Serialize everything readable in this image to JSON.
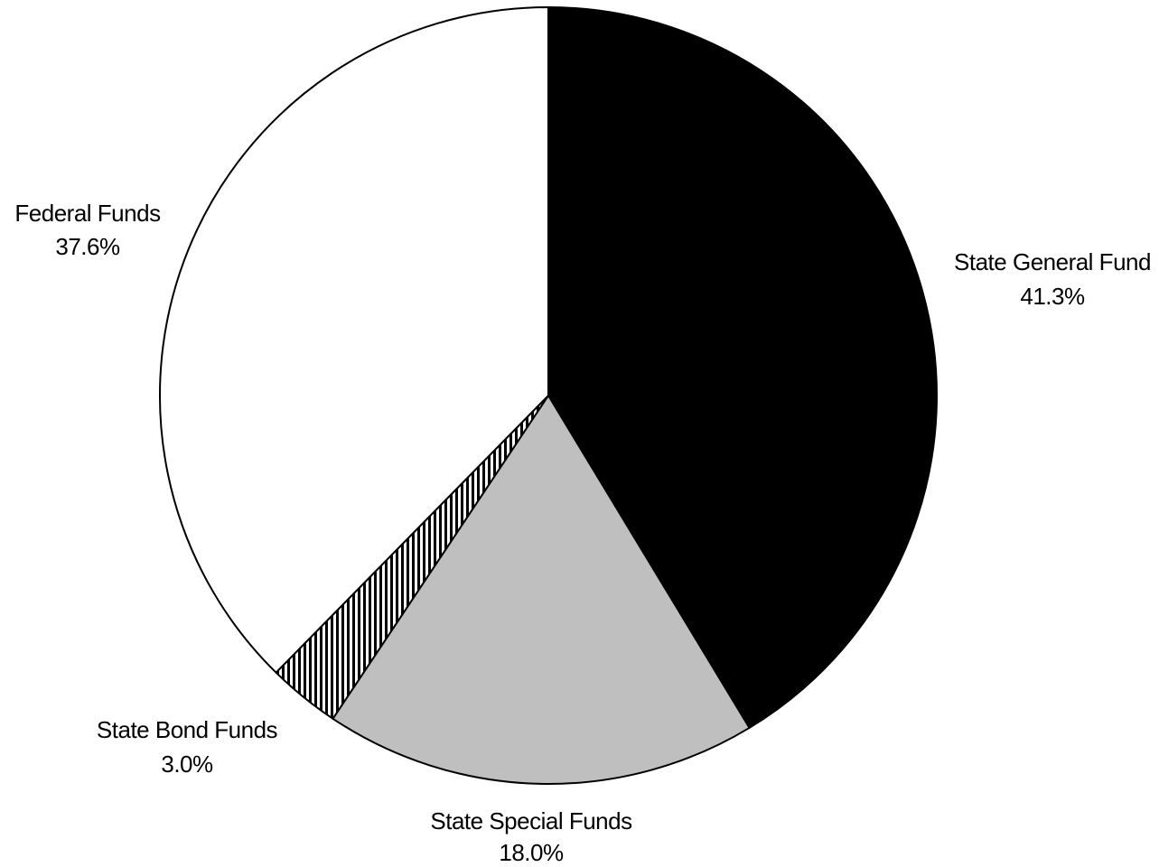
{
  "chart_data": {
    "type": "pie",
    "title": "",
    "slices": [
      {
        "label": "State General Fund",
        "value": 41.3,
        "display": "41.3%",
        "fill": "#000000",
        "pattern": "solid"
      },
      {
        "label": "State Special Funds",
        "value": 18.0,
        "display": "18.0%",
        "fill": "#bfbfbf",
        "pattern": "solid"
      },
      {
        "label": "State Bond Funds",
        "value": 3.0,
        "display": "3.0%",
        "fill": "#000000",
        "pattern": "vertical-stripes"
      },
      {
        "label": "Federal Funds",
        "value": 37.6,
        "display": "37.6%",
        "fill": "#ffffff",
        "pattern": "solid"
      }
    ],
    "start_angle": "12 o'clock",
    "direction": "clockwise",
    "legend": "none",
    "outline_color": "#000000"
  }
}
